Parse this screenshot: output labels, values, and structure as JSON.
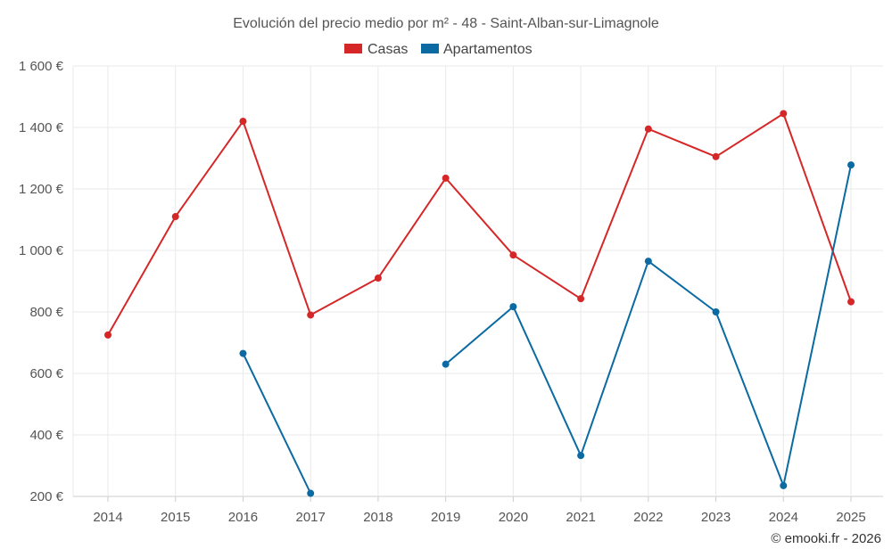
{
  "chart_data": {
    "type": "line",
    "title": "Evolución del precio medio por m² - 48 - Saint-Alban-sur-Limagnole",
    "categories": [
      "2014",
      "2015",
      "2016",
      "2017",
      "2018",
      "2019",
      "2020",
      "2021",
      "2022",
      "2023",
      "2024",
      "2025"
    ],
    "yticks": [
      "200 €",
      "400 €",
      "600 €",
      "800 €",
      "1 000 €",
      "1 200 €",
      "1 400 €",
      "1 600 €"
    ],
    "ytick_values": [
      200,
      400,
      600,
      800,
      1000,
      1200,
      1400,
      1600
    ],
    "ylim": [
      200,
      1600
    ],
    "legend_position": "top-center",
    "grid": true,
    "series": [
      {
        "name": "Casas",
        "color": "#d62728",
        "values": [
          725,
          1110,
          1420,
          790,
          910,
          1235,
          985,
          843,
          1395,
          1305,
          1445,
          833
        ]
      },
      {
        "name": "Apartamentos",
        "color": "#0a6aa1",
        "values": [
          null,
          null,
          665,
          210,
          null,
          630,
          817,
          333,
          965,
          800,
          235,
          1278
        ]
      }
    ],
    "credit": "© emooki.fr - 2026"
  }
}
